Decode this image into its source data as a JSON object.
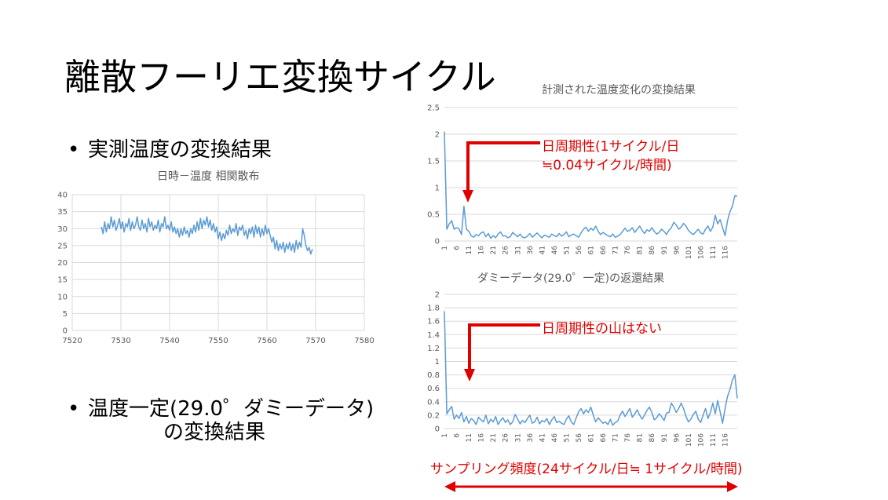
{
  "slide": {
    "title": "離散フーリエ変換サイクル",
    "bullet1": "実測温度の変換結果",
    "bullet2_line1": "温度一定(29.0゜ダミーデータ)",
    "bullet2_line2": "の変換結果",
    "bullet_symbol": "•"
  },
  "annotations": {
    "top_label_line1": "日周期性(1サイクル/日",
    "top_label_line2": "≒0.04サイクル/時間)",
    "bottom_label": "日周期性の山はない",
    "sampling_label": "サンプリング頻度(24サイクル/日≒ 1サイクル/時間)",
    "color": "#e00000"
  },
  "chart_data": [
    {
      "type": "line",
      "title": "日時－温度 相関散布",
      "xlim": [
        7520,
        7580
      ],
      "ylim": [
        0,
        40
      ],
      "xticks": [
        7520,
        7530,
        7540,
        7550,
        7560,
        7570,
        7580
      ],
      "yticks": [
        0,
        5,
        10,
        15,
        20,
        25,
        30,
        35,
        40
      ],
      "grid": true,
      "color": "#5b9bd5",
      "x_start": 7526,
      "x_step": 0.33333,
      "values": [
        30.5,
        28.5,
        32.0,
        29.0,
        31.5,
        30.0,
        33.5,
        30.5,
        32.5,
        29.5,
        31.0,
        33.0,
        30.0,
        32.0,
        29.0,
        31.5,
        30.5,
        33.0,
        29.5,
        32.0,
        30.0,
        31.0,
        33.5,
        30.5,
        29.5,
        32.5,
        30.0,
        31.5,
        29.0,
        33.0,
        30.5,
        32.0,
        29.5,
        31.0,
        30.0,
        32.5,
        29.0,
        31.5,
        30.5,
        33.5,
        30.0,
        31.0,
        29.5,
        32.0,
        29.0,
        30.5,
        28.5,
        30.0,
        27.5,
        30.0,
        28.0,
        30.5,
        28.5,
        29.5,
        27.5,
        30.0,
        28.5,
        31.0,
        29.0,
        32.0,
        29.5,
        33.0,
        30.0,
        32.5,
        31.0,
        33.5,
        30.5,
        32.5,
        29.5,
        31.5,
        29.0,
        30.5,
        27.0,
        29.0,
        26.5,
        28.5,
        27.0,
        29.5,
        28.0,
        31.0,
        28.5,
        30.0,
        29.0,
        31.5,
        28.0,
        30.5,
        29.5,
        31.0,
        28.0,
        29.5,
        27.0,
        30.0,
        28.5,
        30.5,
        27.5,
        31.0,
        28.5,
        30.5,
        27.5,
        30.0,
        28.0,
        31.0,
        28.5,
        30.0,
        28.0,
        26.0,
        27.5,
        24.0,
        26.5,
        23.5,
        25.5,
        24.0,
        26.0,
        23.0,
        25.5,
        24.0,
        26.0,
        23.5,
        25.5,
        23.0,
        26.5,
        24.0,
        26.0,
        24.5,
        30.0,
        28.0,
        25.0,
        23.5,
        24.5,
        22.5,
        24.0
      ]
    },
    {
      "type": "line",
      "title": "計測された温度変化の変換結果",
      "ylim": [
        0,
        2.5
      ],
      "yticks": [
        0,
        0.5,
        1,
        1.5,
        2,
        2.5
      ],
      "xtick_labels": [
        "1",
        "6",
        "11",
        "16",
        "21",
        "26",
        "31",
        "36",
        "41",
        "46",
        "51",
        "56",
        "61",
        "66",
        "71",
        "76",
        "81",
        "86",
        "91",
        "96",
        "101",
        "106",
        "111",
        "116"
      ],
      "grid": true,
      "color": "#5b9bd5",
      "values": [
        2.05,
        0.22,
        0.32,
        0.38,
        0.22,
        0.25,
        0.23,
        0.12,
        0.65,
        0.22,
        0.18,
        0.1,
        0.07,
        0.12,
        0.1,
        0.15,
        0.17,
        0.08,
        0.14,
        0.05,
        0.1,
        0.06,
        0.13,
        0.17,
        0.09,
        0.1,
        0.06,
        0.08,
        0.16,
        0.12,
        0.08,
        0.13,
        0.07,
        0.06,
        0.09,
        0.14,
        0.07,
        0.11,
        0.15,
        0.1,
        0.06,
        0.11,
        0.09,
        0.07,
        0.13,
        0.1,
        0.08,
        0.14,
        0.09,
        0.12,
        0.17,
        0.08,
        0.11,
        0.13,
        0.1,
        0.07,
        0.15,
        0.22,
        0.26,
        0.18,
        0.24,
        0.2,
        0.28,
        0.18,
        0.12,
        0.16,
        0.13,
        0.1,
        0.08,
        0.13,
        0.07,
        0.09,
        0.12,
        0.18,
        0.24,
        0.18,
        0.2,
        0.25,
        0.16,
        0.22,
        0.28,
        0.2,
        0.14,
        0.21,
        0.18,
        0.25,
        0.18,
        0.13,
        0.16,
        0.22,
        0.18,
        0.12,
        0.2,
        0.25,
        0.35,
        0.3,
        0.22,
        0.26,
        0.33,
        0.28,
        0.2,
        0.15,
        0.12,
        0.17,
        0.22,
        0.15,
        0.13,
        0.22,
        0.28,
        0.18,
        0.26,
        0.48,
        0.32,
        0.4,
        0.25,
        0.1,
        0.38,
        0.55,
        0.65,
        0.85,
        0.84
      ]
    },
    {
      "type": "line",
      "title": "ダミーデータ(29.0゜一定)の返還結果",
      "ylim": [
        0,
        2
      ],
      "yticks": [
        0,
        0.2,
        0.4,
        0.6,
        0.8,
        1,
        1.2,
        1.4,
        1.6,
        1.8,
        2
      ],
      "xtick_labels": [
        "1",
        "6",
        "11",
        "16",
        "21",
        "26",
        "31",
        "36",
        "41",
        "46",
        "51",
        "56",
        "61",
        "66",
        "71",
        "76",
        "81",
        "86",
        "91",
        "96",
        "101",
        "106",
        "111",
        "116"
      ],
      "grid": true,
      "color": "#5b9bd5",
      "values": [
        1.75,
        0.22,
        0.28,
        0.33,
        0.14,
        0.2,
        0.15,
        0.24,
        0.1,
        0.18,
        0.08,
        0.15,
        0.12,
        0.06,
        0.17,
        0.13,
        0.1,
        0.2,
        0.07,
        0.14,
        0.1,
        0.18,
        0.06,
        0.12,
        0.16,
        0.09,
        0.13,
        0.06,
        0.1,
        0.21,
        0.14,
        0.07,
        0.12,
        0.09,
        0.15,
        0.2,
        0.08,
        0.1,
        0.17,
        0.07,
        0.12,
        0.1,
        0.15,
        0.06,
        0.13,
        0.18,
        0.09,
        0.11,
        0.08,
        0.06,
        0.14,
        0.19,
        0.1,
        0.06,
        0.16,
        0.25,
        0.3,
        0.22,
        0.28,
        0.24,
        0.32,
        0.2,
        0.1,
        0.16,
        0.12,
        0.08,
        0.1,
        0.06,
        0.14,
        0.05,
        0.09,
        0.11,
        0.2,
        0.26,
        0.18,
        0.24,
        0.3,
        0.17,
        0.22,
        0.28,
        0.2,
        0.14,
        0.2,
        0.27,
        0.32,
        0.24,
        0.13,
        0.16,
        0.22,
        0.18,
        0.12,
        0.23,
        0.24,
        0.38,
        0.32,
        0.24,
        0.3,
        0.38,
        0.3,
        0.18,
        0.1,
        0.14,
        0.21,
        0.26,
        0.14,
        0.09,
        0.2,
        0.3,
        0.15,
        0.24,
        0.38,
        0.22,
        0.42,
        0.25,
        0.08,
        0.3,
        0.48,
        0.58,
        0.72,
        0.8,
        0.45
      ]
    }
  ]
}
